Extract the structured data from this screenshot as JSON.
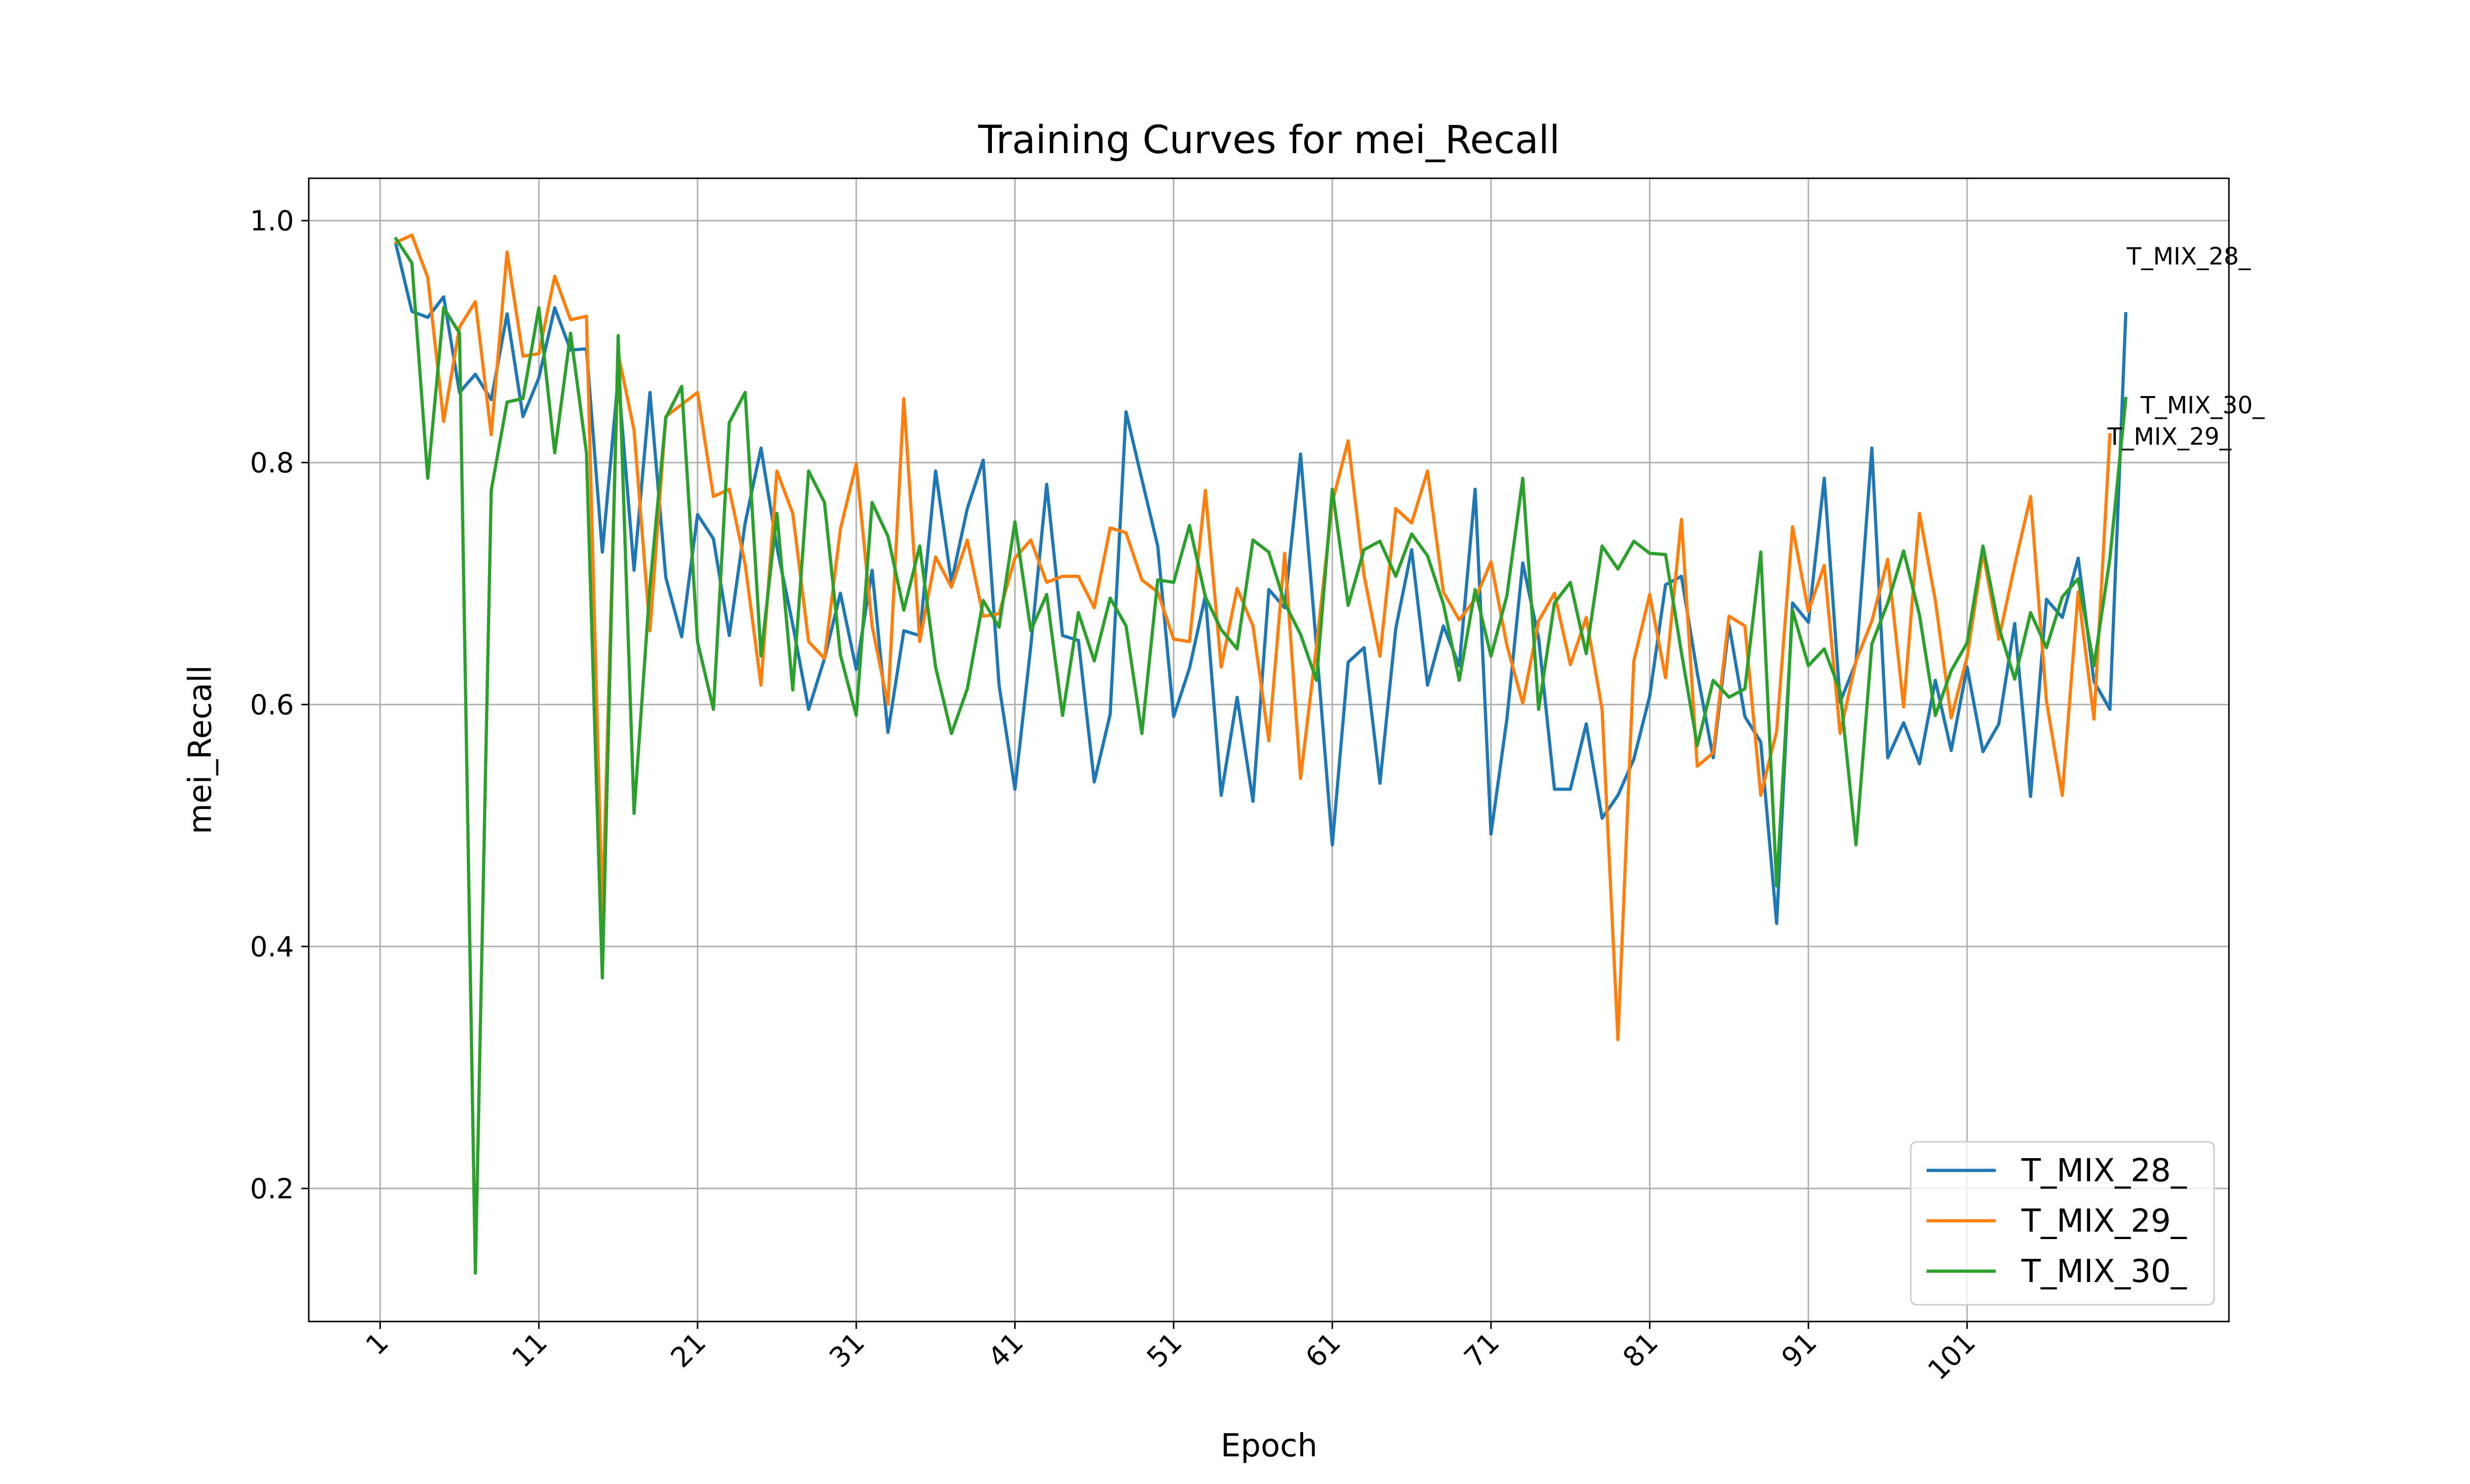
{
  "chart_data": {
    "type": "line",
    "title": "Training Curves for mei_Recall",
    "xlabel": "Epoch",
    "ylabel": "mei_Recall",
    "xlim": [
      -3.5,
      117.5
    ],
    "ylim": [
      0.09,
      1.035
    ],
    "grid": true,
    "legend_position": "lower right",
    "x_ticks": [
      1,
      11,
      21,
      31,
      41,
      51,
      61,
      71,
      81,
      91,
      101
    ],
    "x_tick_labels": [
      "1",
      "11",
      "21",
      "31",
      "41",
      "51",
      "61",
      "71",
      "81",
      "91",
      "101"
    ],
    "y_ticks": [
      0.2,
      0.4,
      0.6,
      0.8,
      1.0
    ],
    "y_tick_labels": [
      "0.2",
      "0.4",
      "0.6",
      "0.8",
      "1.0"
    ],
    "x_start": 2,
    "series": [
      {
        "name": "T_MIX_28_",
        "color": "#1f77b4",
        "end_label": "T_MIX_28_",
        "values": [
          0.98,
          0.925,
          0.92,
          0.937,
          0.858,
          0.873,
          0.852,
          0.923,
          0.838,
          0.87,
          0.928,
          0.893,
          0.894,
          0.726,
          0.87,
          0.711,
          0.858,
          0.705,
          0.656,
          0.757,
          0.737,
          0.657,
          0.75,
          0.812,
          0.73,
          0.666,
          0.596,
          0.638,
          0.692,
          0.629,
          0.711,
          0.577,
          0.661,
          0.657,
          0.793,
          0.701,
          0.762,
          0.802,
          0.616,
          0.53,
          0.648,
          0.782,
          0.657,
          0.653,
          0.536,
          0.592,
          0.842,
          0.786,
          0.731,
          0.59,
          0.63,
          0.69,
          0.525,
          0.606,
          0.52,
          0.695,
          0.68,
          0.807,
          0.648,
          0.484,
          0.635,
          0.647,
          0.535,
          0.663,
          0.728,
          0.616,
          0.665,
          0.632,
          0.778,
          0.493,
          0.588,
          0.717,
          0.655,
          0.53,
          0.53,
          0.584,
          0.506,
          0.525,
          0.555,
          0.607,
          0.699,
          0.706,
          0.626,
          0.556,
          0.666,
          0.59,
          0.569,
          0.419,
          0.684,
          0.668,
          0.787,
          0.602,
          0.635,
          0.812,
          0.556,
          0.585,
          0.551,
          0.62,
          0.562,
          0.631,
          0.561,
          0.584,
          0.667,
          0.524,
          0.687,
          0.672,
          0.721,
          0.619,
          0.596,
          0.923
        ]
      },
      {
        "name": "T_MIX_29_",
        "color": "#ff7f0e",
        "end_label": "T_MIX_29_",
        "values": [
          0.982,
          0.988,
          0.953,
          0.834,
          0.912,
          0.933,
          0.823,
          0.974,
          0.888,
          0.89,
          0.954,
          0.918,
          0.921,
          0.425,
          0.89,
          0.827,
          0.661,
          0.838,
          0.848,
          0.858,
          0.772,
          0.778,
          0.716,
          0.616,
          0.793,
          0.758,
          0.652,
          0.638,
          0.745,
          0.799,
          0.665,
          0.6,
          0.853,
          0.652,
          0.722,
          0.697,
          0.736,
          0.673,
          0.675,
          0.721,
          0.736,
          0.701,
          0.706,
          0.706,
          0.68,
          0.746,
          0.742,
          0.703,
          0.693,
          0.654,
          0.652,
          0.777,
          0.631,
          0.696,
          0.665,
          0.57,
          0.725,
          0.539,
          0.648,
          0.767,
          0.818,
          0.707,
          0.64,
          0.762,
          0.75,
          0.793,
          0.693,
          0.67,
          0.687,
          0.718,
          0.649,
          0.601,
          0.669,
          0.692,
          0.633,
          0.672,
          0.596,
          0.323,
          0.636,
          0.691,
          0.622,
          0.753,
          0.549,
          0.56,
          0.673,
          0.665,
          0.525,
          0.578,
          0.747,
          0.677,
          0.715,
          0.576,
          0.636,
          0.669,
          0.72,
          0.598,
          0.758,
          0.686,
          0.589,
          0.639,
          0.726,
          0.654,
          0.715,
          0.772,
          0.603,
          0.525,
          0.693,
          0.588,
          0.823
        ]
      },
      {
        "name": "T_MIX_30_",
        "color": "#2ca02c",
        "end_label": "T_MIX_30_",
        "values": [
          0.985,
          0.965,
          0.787,
          0.928,
          0.907,
          0.13,
          0.777,
          0.85,
          0.853,
          0.928,
          0.808,
          0.907,
          0.808,
          0.374,
          0.905,
          0.51,
          0.698,
          0.837,
          0.863,
          0.652,
          0.596,
          0.833,
          0.858,
          0.64,
          0.758,
          0.612,
          0.793,
          0.767,
          0.641,
          0.591,
          0.767,
          0.739,
          0.678,
          0.731,
          0.631,
          0.576,
          0.613,
          0.686,
          0.664,
          0.751,
          0.661,
          0.691,
          0.591,
          0.676,
          0.636,
          0.688,
          0.665,
          0.576,
          0.703,
          0.701,
          0.748,
          0.689,
          0.662,
          0.646,
          0.736,
          0.726,
          0.684,
          0.658,
          0.62,
          0.778,
          0.682,
          0.728,
          0.735,
          0.706,
          0.741,
          0.723,
          0.683,
          0.62,
          0.695,
          0.64,
          0.69,
          0.787,
          0.596,
          0.684,
          0.701,
          0.642,
          0.731,
          0.712,
          0.735,
          0.725,
          0.724,
          0.643,
          0.566,
          0.62,
          0.606,
          0.613,
          0.726,
          0.45,
          0.678,
          0.632,
          0.646,
          0.611,
          0.484,
          0.65,
          0.684,
          0.727,
          0.674,
          0.591,
          0.628,
          0.651,
          0.731,
          0.664,
          0.621,
          0.676,
          0.647,
          0.689,
          0.704,
          0.632,
          0.721,
          0.853
        ]
      }
    ]
  }
}
